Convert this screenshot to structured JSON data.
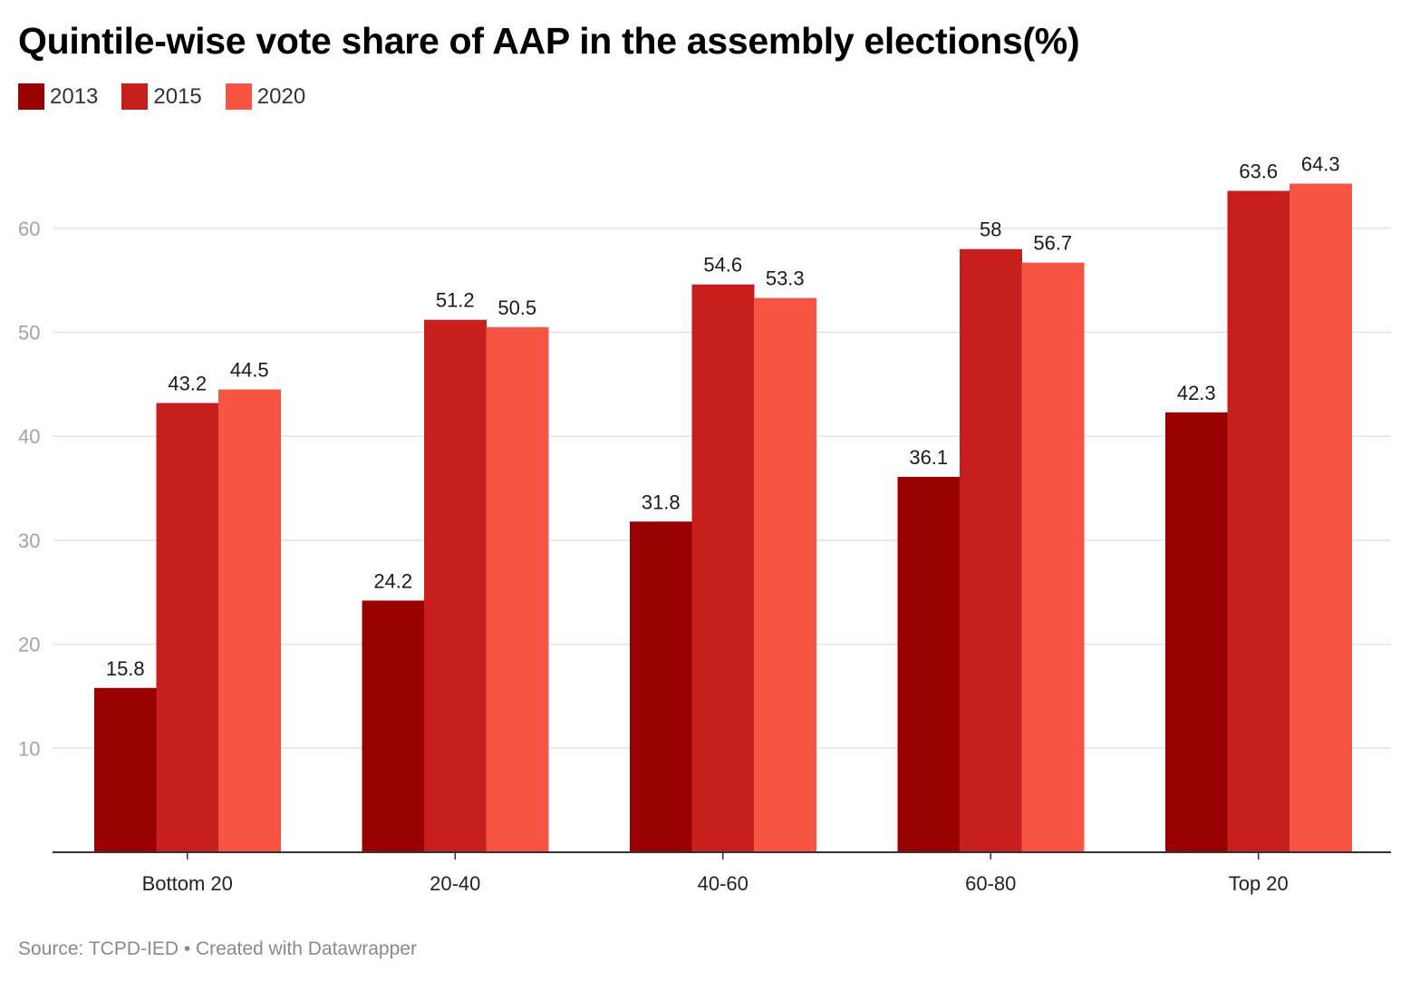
{
  "title": "Quintile-wise vote share of AAP in the assembly elections(%)",
  "source": "Source: TCPD-IED • Created with Datawrapper",
  "chart_data": {
    "type": "bar",
    "title": "Quintile-wise vote share of AAP in the assembly elections(%)",
    "categories": [
      "Bottom 20",
      "20-40",
      "40-60",
      "60-80",
      "Top 20"
    ],
    "series": [
      {
        "name": "2013",
        "color": "#990000",
        "values": [
          15.8,
          24.2,
          31.8,
          36.1,
          42.3
        ]
      },
      {
        "name": "2015",
        "color": "#c71e1e",
        "values": [
          43.2,
          51.2,
          54.6,
          58,
          63.6
        ]
      },
      {
        "name": "2020",
        "color": "#f75444",
        "values": [
          44.5,
          50.5,
          53.3,
          56.7,
          64.3
        ]
      }
    ],
    "y_ticks": [
      10,
      20,
      30,
      40,
      50,
      60
    ],
    "ylim": [
      0,
      70
    ],
    "grid": true,
    "legend": "top-left",
    "data_labels": true
  }
}
